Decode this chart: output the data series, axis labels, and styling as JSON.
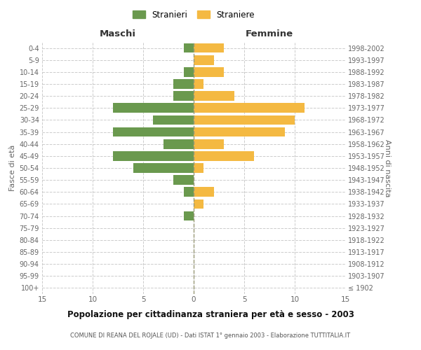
{
  "age_groups": [
    "100+",
    "95-99",
    "90-94",
    "85-89",
    "80-84",
    "75-79",
    "70-74",
    "65-69",
    "60-64",
    "55-59",
    "50-54",
    "45-49",
    "40-44",
    "35-39",
    "30-34",
    "25-29",
    "20-24",
    "15-19",
    "10-14",
    "5-9",
    "0-4"
  ],
  "birth_years": [
    "≤ 1902",
    "1903-1907",
    "1908-1912",
    "1913-1917",
    "1918-1922",
    "1923-1927",
    "1928-1932",
    "1933-1937",
    "1938-1942",
    "1943-1947",
    "1948-1952",
    "1953-1957",
    "1958-1962",
    "1963-1967",
    "1968-1972",
    "1973-1977",
    "1978-1982",
    "1983-1987",
    "1988-1992",
    "1993-1997",
    "1998-2002"
  ],
  "males": [
    0,
    0,
    0,
    0,
    0,
    0,
    1,
    0,
    1,
    2,
    6,
    8,
    3,
    8,
    4,
    8,
    2,
    2,
    1,
    0,
    1
  ],
  "females": [
    0,
    0,
    0,
    0,
    0,
    0,
    0,
    1,
    2,
    0,
    1,
    6,
    3,
    9,
    10,
    11,
    4,
    1,
    3,
    2,
    3
  ],
  "male_color": "#6a994e",
  "female_color": "#f4b942",
  "background_color": "#ffffff",
  "grid_color": "#cccccc",
  "title": "Popolazione per cittadinanza straniera per età e sesso - 2003",
  "subtitle": "COMUNE DI REANA DEL ROJALE (UD) - Dati ISTAT 1° gennaio 2003 - Elaborazione TUTTITALIA.IT",
  "xlabel_left": "Maschi",
  "xlabel_right": "Femmine",
  "ylabel_left": "Fasce di età",
  "ylabel_right": "Anni di nascita",
  "legend_male": "Stranieri",
  "legend_female": "Straniere",
  "xlim": 15,
  "bar_height": 0.8
}
